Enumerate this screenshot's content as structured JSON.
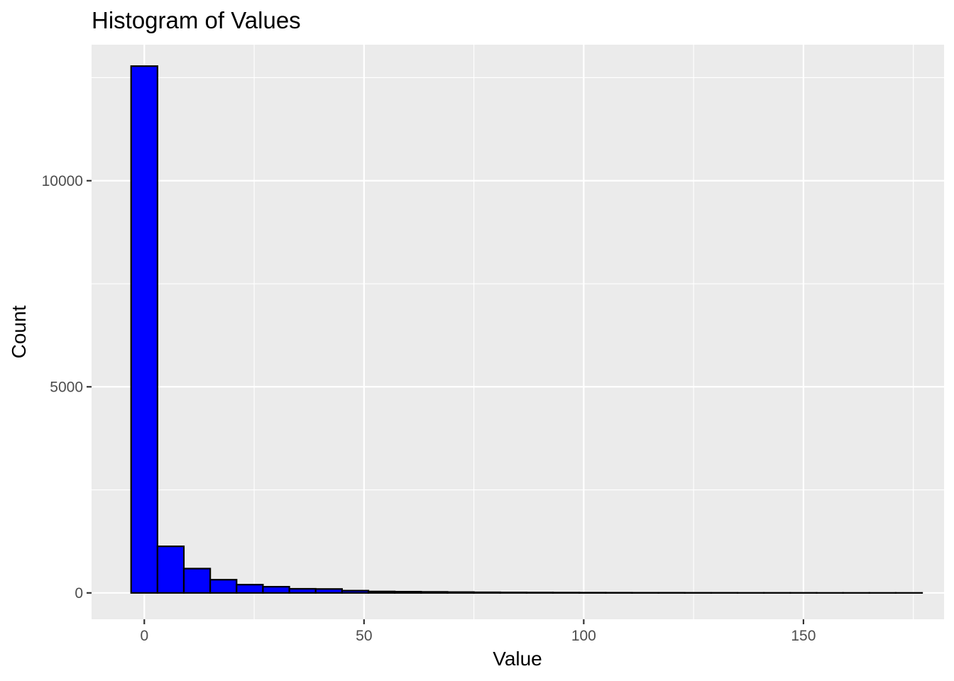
{
  "chart_data": {
    "type": "bar",
    "title": "Histogram of Values",
    "xlabel": "Value",
    "ylabel": "Count",
    "xlim": [
      -12,
      182
    ],
    "ylim": [
      -640,
      13300
    ],
    "xticks": [
      0,
      50,
      100,
      150
    ],
    "xtick_labels": [
      "0",
      "50",
      "100",
      "150"
    ],
    "yticks": [
      0,
      5000,
      10000
    ],
    "ytick_labels": [
      "0",
      "5000",
      "10000"
    ],
    "grid": true,
    "legend": "none",
    "bin_width": 6.0,
    "bin_start": -3.0,
    "counts": [
      12780,
      1130,
      590,
      320,
      200,
      150,
      100,
      95,
      55,
      35,
      30,
      25,
      20,
      15,
      12,
      10,
      8,
      6,
      5,
      4,
      4,
      3,
      3,
      2,
      2,
      2,
      1,
      1,
      1,
      1
    ],
    "colors": {
      "fill": "#0000ff",
      "stroke": "#000000",
      "panel": "#ebebeb",
      "grid": "#ffffff"
    }
  }
}
